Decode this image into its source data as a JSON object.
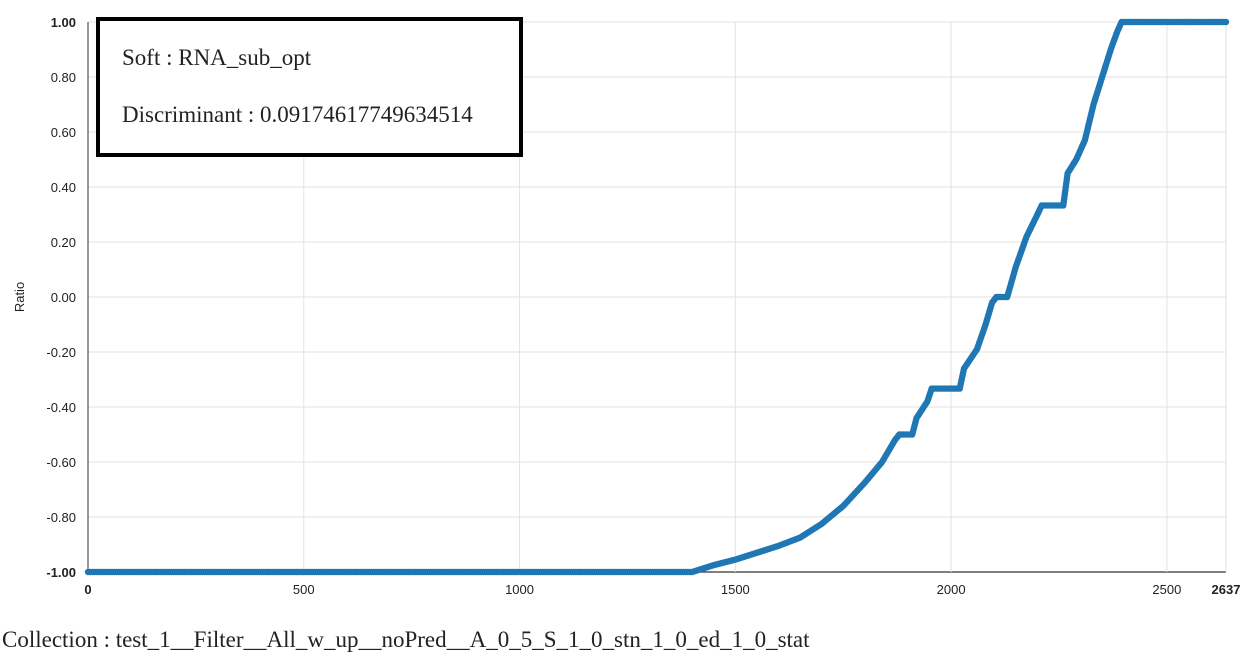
{
  "chart_data": {
    "type": "scatter",
    "ylabel": "Ratio",
    "xlabel": "",
    "xlim": [
      0,
      2637
    ],
    "ylim": [
      -1.0,
      1.0
    ],
    "x_ticks": [
      "0",
      "500",
      "1000",
      "1500",
      "2000",
      "2500",
      "2637"
    ],
    "y_ticks": [
      "1.00",
      "0.80",
      "0.60",
      "0.40",
      "0.20",
      "0.00",
      "-0.20",
      "-0.40",
      "-0.60",
      "-0.80",
      "-1.00"
    ],
    "grid": true,
    "color": "#1f77b4",
    "points": [
      [
        0,
        -1.0
      ],
      [
        1400,
        -1.0
      ],
      [
        1450,
        -0.975
      ],
      [
        1500,
        -0.955
      ],
      [
        1550,
        -0.93
      ],
      [
        1600,
        -0.905
      ],
      [
        1650,
        -0.875
      ],
      [
        1700,
        -0.825
      ],
      [
        1750,
        -0.76
      ],
      [
        1800,
        -0.675
      ],
      [
        1840,
        -0.6
      ],
      [
        1870,
        -0.52
      ],
      [
        1880,
        -0.5
      ],
      [
        1910,
        -0.5
      ],
      [
        1920,
        -0.44
      ],
      [
        1945,
        -0.38
      ],
      [
        1955,
        -0.333
      ],
      [
        2020,
        -0.333
      ],
      [
        2030,
        -0.26
      ],
      [
        2060,
        -0.19
      ],
      [
        2080,
        -0.1
      ],
      [
        2095,
        -0.02
      ],
      [
        2105,
        0.0
      ],
      [
        2130,
        0.0
      ],
      [
        2150,
        0.11
      ],
      [
        2175,
        0.22
      ],
      [
        2200,
        0.3
      ],
      [
        2210,
        0.333
      ],
      [
        2260,
        0.333
      ],
      [
        2270,
        0.45
      ],
      [
        2290,
        0.5
      ],
      [
        2310,
        0.57
      ],
      [
        2330,
        0.7
      ],
      [
        2350,
        0.8
      ],
      [
        2370,
        0.9
      ],
      [
        2385,
        0.965
      ],
      [
        2395,
        1.0
      ],
      [
        2637,
        1.0
      ]
    ]
  },
  "legend": {
    "line1": "Soft : RNA_sub_opt",
    "line2": "Discriminant : 0.09174617749634514"
  },
  "footer": {
    "collection": "Collection : test_1__Filter__All_w_up__noPred__A_0_5_S_1_0_stn_1_0_ed_1_0_stat"
  }
}
